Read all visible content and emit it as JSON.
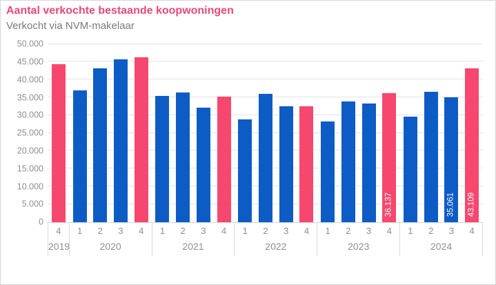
{
  "title": "Aantal verkochte bestaande koopwoningen",
  "subtitle": "Verkocht via NVM-makelaar",
  "colors": {
    "title_pink": "#e8497b",
    "bar_blue": "#0d5cc6",
    "bar_pink": "#f6486e",
    "gridline": "#e3e3e3",
    "axis_text": "#8e8e8e",
    "band_border": "#d9d9d9",
    "bar_label_text": "#ffffff",
    "card_border": "#d8d8d8"
  },
  "chart_data": {
    "type": "bar",
    "title": "Aantal verkochte bestaande koopwoningen",
    "subtitle": "Verkocht via NVM-makelaar",
    "ylabel": "",
    "xlabel": "",
    "ylim": [
      0,
      50000
    ],
    "ytick_step": 5000,
    "ytick_labels": [
      "0",
      "5.000",
      "10.000",
      "15.000",
      "20.000",
      "25.000",
      "30.000",
      "35.000",
      "40.000",
      "45.000",
      "50.000"
    ],
    "grid": "horizontal",
    "legend": "none",
    "highlight_rule": "Q4 bars are pink, other quarters blue",
    "groups": [
      {
        "year": "2019",
        "quarters": [
          {
            "q": "4",
            "value": 44400,
            "highlight": true
          }
        ]
      },
      {
        "year": "2020",
        "quarters": [
          {
            "q": "1",
            "value": 36900,
            "highlight": false
          },
          {
            "q": "2",
            "value": 43100,
            "highlight": false
          },
          {
            "q": "3",
            "value": 45700,
            "highlight": false
          },
          {
            "q": "4",
            "value": 46300,
            "highlight": true
          }
        ]
      },
      {
        "year": "2021",
        "quarters": [
          {
            "q": "1",
            "value": 35400,
            "highlight": false
          },
          {
            "q": "2",
            "value": 36400,
            "highlight": false
          },
          {
            "q": "3",
            "value": 32200,
            "highlight": false
          },
          {
            "q": "4",
            "value": 35300,
            "highlight": true
          }
        ]
      },
      {
        "year": "2022",
        "quarters": [
          {
            "q": "1",
            "value": 28900,
            "highlight": false
          },
          {
            "q": "2",
            "value": 36000,
            "highlight": false
          },
          {
            "q": "3",
            "value": 32500,
            "highlight": false
          },
          {
            "q": "4",
            "value": 32400,
            "highlight": true
          }
        ]
      },
      {
        "year": "2023",
        "quarters": [
          {
            "q": "1",
            "value": 28300,
            "highlight": false
          },
          {
            "q": "2",
            "value": 33900,
            "highlight": false
          },
          {
            "q": "3",
            "value": 33200,
            "highlight": false
          },
          {
            "q": "4",
            "value": 36137,
            "highlight": true,
            "label": "36.137"
          }
        ]
      },
      {
        "year": "2024",
        "quarters": [
          {
            "q": "1",
            "value": 29500,
            "highlight": false
          },
          {
            "q": "2",
            "value": 36600,
            "highlight": false
          },
          {
            "q": "3",
            "value": 35061,
            "highlight": false,
            "label": "35.061"
          },
          {
            "q": "4",
            "value": 43109,
            "highlight": true,
            "label": "43.109"
          }
        ]
      }
    ]
  }
}
